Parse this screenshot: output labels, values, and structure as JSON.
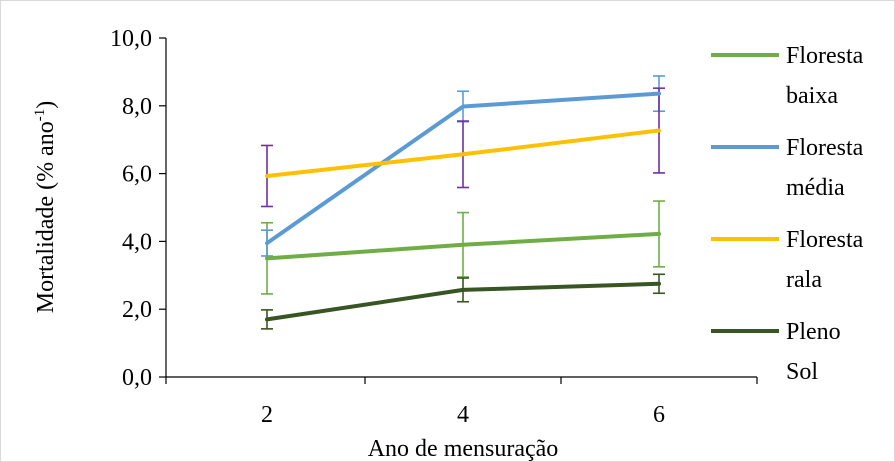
{
  "chart_data": {
    "type": "line",
    "title": "",
    "xlabel": "Ano de mensuração",
    "ylabel_main": "Mortalidade (% ano",
    "ylabel_sup": "-1",
    "ylabel_close": ")",
    "categories": [
      "2",
      "4",
      "6"
    ],
    "ylim": [
      0,
      10
    ],
    "ytick_values": [
      0,
      2,
      4,
      6,
      8,
      10
    ],
    "ytick_labels": [
      "0,0",
      "2,0",
      "4,0",
      "6,0",
      "8,0",
      "10,0"
    ],
    "grid": false,
    "legend_position": "right",
    "series": [
      {
        "name_lines": [
          "Floresta",
          "baixa"
        ],
        "color": "#70ad47",
        "error_color": "#70ad47",
        "values": [
          3.5,
          3.9,
          4.22
        ],
        "errors": [
          1.05,
          0.95,
          0.97
        ]
      },
      {
        "name_lines": [
          "Floresta",
          "média"
        ],
        "color": "#5b9bd5",
        "error_color": "#5b9bd5",
        "values": [
          3.95,
          7.98,
          8.36
        ],
        "errors": [
          0.38,
          0.45,
          0.52
        ]
      },
      {
        "name_lines": [
          "Floresta",
          "rala"
        ],
        "color": "#ffc000",
        "error_color": "#7030a0",
        "values": [
          5.93,
          6.57,
          7.27
        ],
        "errors": [
          0.9,
          0.98,
          1.25
        ]
      },
      {
        "name_lines": [
          "Pleno",
          "Sol"
        ],
        "color": "#375623",
        "error_color": "#375623",
        "values": [
          1.7,
          2.57,
          2.75
        ],
        "errors": [
          0.28,
          0.35,
          0.28
        ]
      }
    ]
  }
}
